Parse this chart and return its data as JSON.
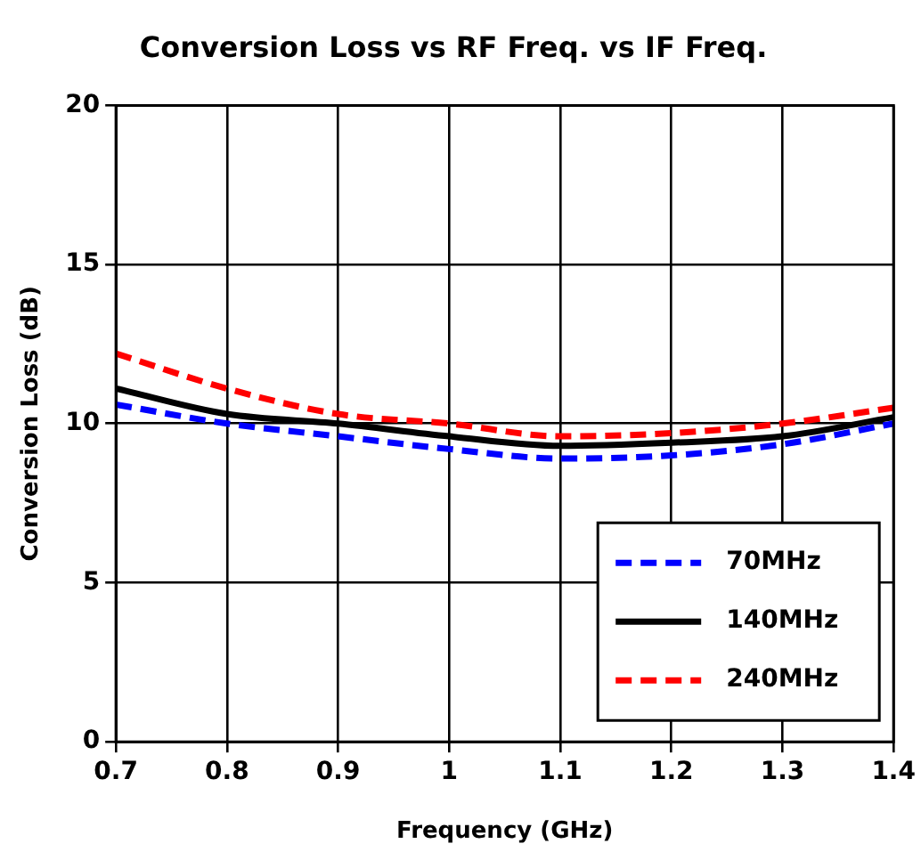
{
  "chart_data": {
    "type": "line",
    "title": "Conversion Loss vs RF Freq. vs IF Freq.",
    "xlabel": "Frequency (GHz)",
    "ylabel": "Conversion Loss (dB)",
    "x": [
      0.7,
      0.8,
      0.9,
      1.0,
      1.1,
      1.2,
      1.3,
      1.4
    ],
    "series": [
      {
        "name": "70MHz",
        "color": "#0000ff",
        "line_style": "dashed",
        "values": [
          10.6,
          10.0,
          9.6,
          9.2,
          8.9,
          9.0,
          9.35,
          10.0
        ]
      },
      {
        "name": "140MHz",
        "color": "#000000",
        "line_style": "solid",
        "values": [
          11.1,
          10.3,
          10.0,
          9.6,
          9.3,
          9.4,
          9.6,
          10.2
        ]
      },
      {
        "name": "240MHz",
        "color": "#ff0000",
        "line_style": "dashed",
        "values": [
          12.2,
          11.1,
          10.3,
          10.0,
          9.6,
          9.7,
          10.0,
          10.5
        ]
      }
    ],
    "xlim": [
      0.7,
      1.4
    ],
    "xticks": [
      0.7,
      0.8,
      0.9,
      1,
      1.1,
      1.2,
      1.3,
      1.4
    ],
    "ylim": [
      0,
      20
    ],
    "yticks": [
      0,
      5,
      10,
      15,
      20
    ],
    "grid": true,
    "legend": "bottom right",
    "marker": "none"
  }
}
